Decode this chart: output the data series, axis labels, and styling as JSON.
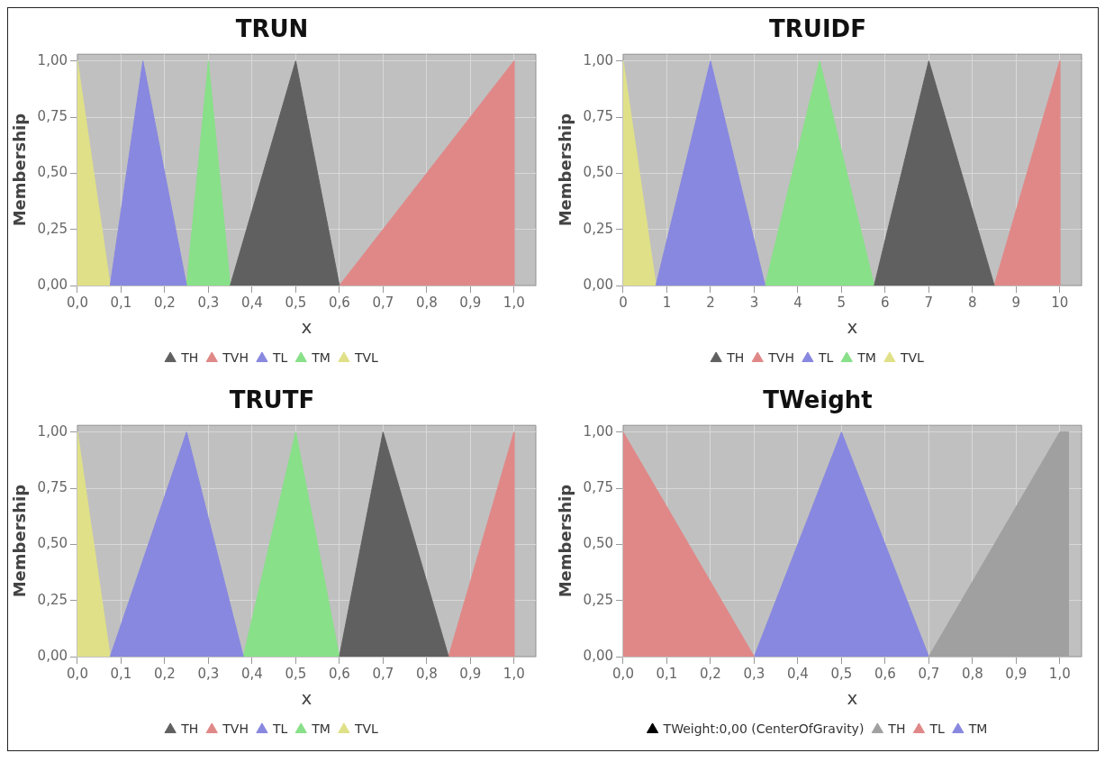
{
  "chart_data": [
    {
      "type": "area",
      "title": "TRUN",
      "xlabel": "x",
      "ylabel": "Membership",
      "xlim": [
        0,
        1.05
      ],
      "xticks": [
        {
          "value": 0,
          "label": "0,0"
        },
        {
          "value": 0.1,
          "label": "0,1"
        },
        {
          "value": 0.2,
          "label": "0,2"
        },
        {
          "value": 0.3,
          "label": "0,3"
        },
        {
          "value": 0.4,
          "label": "0,4"
        },
        {
          "value": 0.5,
          "label": "0,5"
        },
        {
          "value": 0.6,
          "label": "0,6"
        },
        {
          "value": 0.7,
          "label": "0,7"
        },
        {
          "value": 0.8,
          "label": "0,8"
        },
        {
          "value": 0.9,
          "label": "0,9"
        },
        {
          "value": 1,
          "label": "1,0"
        }
      ],
      "ylim": [
        0,
        1.03
      ],
      "yticks": [
        {
          "value": 0,
          "label": "0,00"
        },
        {
          "value": 0.25,
          "label": "0,25"
        },
        {
          "value": 0.5,
          "label": "0,50"
        },
        {
          "value": 0.75,
          "label": "0,75"
        },
        {
          "value": 1,
          "label": "1,00"
        }
      ],
      "grid": true,
      "legend": "bottom",
      "series": [
        {
          "name": "TH",
          "color": "#606060",
          "x": [
            0.35,
            0.5,
            0.6
          ],
          "values": [
            0,
            1,
            0
          ]
        },
        {
          "name": "TVH",
          "color": "#e08888",
          "x": [
            0.6,
            1,
            1
          ],
          "values": [
            0,
            1,
            0
          ]
        },
        {
          "name": "TL",
          "color": "#8888e0",
          "x": [
            0.075,
            0.15,
            0.25
          ],
          "values": [
            0,
            1,
            0
          ]
        },
        {
          "name": "TM",
          "color": "#88e088",
          "x": [
            0.25,
            0.3,
            0.35
          ],
          "values": [
            0,
            1,
            0
          ]
        },
        {
          "name": "TVL",
          "color": "#e0e088",
          "x": [
            0,
            0,
            0.075
          ],
          "values": [
            0,
            1,
            0
          ]
        }
      ]
    },
    {
      "type": "area",
      "title": "TRUIDF",
      "xlabel": "x",
      "ylabel": "Membership",
      "xlim": [
        0,
        10.5
      ],
      "xticks": [
        0,
        1,
        2,
        3,
        4,
        5,
        6,
        7,
        8,
        9,
        10
      ],
      "ylim": [
        0,
        1.03
      ],
      "yticks": [
        {
          "value": 0,
          "label": "0,00"
        },
        {
          "value": 0.25,
          "label": "0,25"
        },
        {
          "value": 0.5,
          "label": "0,50"
        },
        {
          "value": 0.75,
          "label": "0,75"
        },
        {
          "value": 1,
          "label": "1,00"
        }
      ],
      "grid": true,
      "legend": "bottom",
      "series": [
        {
          "name": "TH",
          "color": "#606060",
          "x": [
            5.75,
            7,
            8.5
          ],
          "values": [
            0,
            1,
            0
          ]
        },
        {
          "name": "TVH",
          "color": "#e08888",
          "x": [
            8.5,
            10,
            10
          ],
          "values": [
            0,
            1,
            0
          ]
        },
        {
          "name": "TL",
          "color": "#8888e0",
          "x": [
            0.75,
            2,
            3.25
          ],
          "values": [
            0,
            1,
            0
          ]
        },
        {
          "name": "TM",
          "color": "#88e088",
          "x": [
            3.25,
            4.5,
            5.75
          ],
          "values": [
            0,
            1,
            0
          ]
        },
        {
          "name": "TVL",
          "color": "#e0e088",
          "x": [
            0,
            0,
            0.75
          ],
          "values": [
            0,
            1,
            0
          ]
        }
      ]
    },
    {
      "type": "area",
      "title": "TRUTF",
      "xlabel": "x",
      "ylabel": "Membership",
      "xlim": [
        0,
        1.05
      ],
      "xticks": [
        {
          "value": 0,
          "label": "0,0"
        },
        {
          "value": 0.1,
          "label": "0,1"
        },
        {
          "value": 0.2,
          "label": "0,2"
        },
        {
          "value": 0.3,
          "label": "0,3"
        },
        {
          "value": 0.4,
          "label": "0,4"
        },
        {
          "value": 0.5,
          "label": "0,5"
        },
        {
          "value": 0.6,
          "label": "0,6"
        },
        {
          "value": 0.7,
          "label": "0,7"
        },
        {
          "value": 0.8,
          "label": "0,8"
        },
        {
          "value": 0.9,
          "label": "0,9"
        },
        {
          "value": 1,
          "label": "1,0"
        }
      ],
      "ylim": [
        0,
        1.03
      ],
      "yticks": [
        {
          "value": 0,
          "label": "0,00"
        },
        {
          "value": 0.25,
          "label": "0,25"
        },
        {
          "value": 0.5,
          "label": "0,50"
        },
        {
          "value": 0.75,
          "label": "0,75"
        },
        {
          "value": 1,
          "label": "1,00"
        }
      ],
      "grid": true,
      "legend": "bottom",
      "series": [
        {
          "name": "TH",
          "color": "#606060",
          "x": [
            0.6,
            0.7,
            0.85
          ],
          "values": [
            0,
            1,
            0
          ]
        },
        {
          "name": "TVH",
          "color": "#e08888",
          "x": [
            0.85,
            1,
            1
          ],
          "values": [
            0,
            1,
            0
          ]
        },
        {
          "name": "TL",
          "color": "#8888e0",
          "x": [
            0.075,
            0.25,
            0.38
          ],
          "values": [
            0,
            1,
            0
          ]
        },
        {
          "name": "TM",
          "color": "#88e088",
          "x": [
            0.38,
            0.5,
            0.6
          ],
          "values": [
            0,
            1,
            0
          ]
        },
        {
          "name": "TVL",
          "color": "#e0e088",
          "x": [
            0,
            0,
            0.075
          ],
          "values": [
            0,
            1,
            0
          ]
        }
      ]
    },
    {
      "type": "area",
      "title": "TWeight",
      "xlabel": "x",
      "ylabel": "Membership",
      "xlim": [
        0,
        1.05
      ],
      "xticks": [
        {
          "value": 0,
          "label": "0,0"
        },
        {
          "value": 0.1,
          "label": "0,1"
        },
        {
          "value": 0.2,
          "label": "0,2"
        },
        {
          "value": 0.3,
          "label": "0,3"
        },
        {
          "value": 0.4,
          "label": "0,4"
        },
        {
          "value": 0.5,
          "label": "0,5"
        },
        {
          "value": 0.6,
          "label": "0,6"
        },
        {
          "value": 0.7,
          "label": "0,7"
        },
        {
          "value": 0.8,
          "label": "0,8"
        },
        {
          "value": 0.9,
          "label": "0,9"
        },
        {
          "value": 1,
          "label": "1,0"
        }
      ],
      "ylim": [
        0,
        1.03
      ],
      "yticks": [
        {
          "value": 0,
          "label": "0,00"
        },
        {
          "value": 0.25,
          "label": "0,25"
        },
        {
          "value": 0.5,
          "label": "0,50"
        },
        {
          "value": 0.75,
          "label": "0,75"
        },
        {
          "value": 1,
          "label": "1,00"
        }
      ],
      "grid": true,
      "legend": "bottom",
      "series": [
        {
          "name": "TWeight:0,00 (CenterOfGravity)",
          "color": "#000000"
        },
        {
          "name": "TH",
          "color": "#a0a0a0",
          "x": [
            0.7,
            1,
            1.02,
            1.02
          ],
          "values": [
            0,
            1,
            1,
            0
          ]
        },
        {
          "name": "TL",
          "color": "#e08888",
          "x": [
            0,
            0,
            0.3
          ],
          "values": [
            0,
            1,
            0
          ]
        },
        {
          "name": "TM",
          "color": "#8888e0",
          "x": [
            0.3,
            0.5,
            0.7
          ],
          "values": [
            0,
            1,
            0
          ]
        }
      ]
    }
  ]
}
